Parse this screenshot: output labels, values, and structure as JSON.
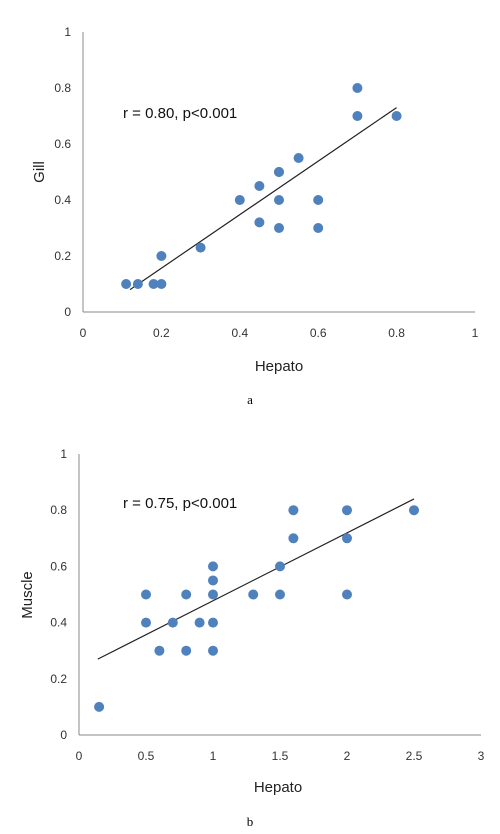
{
  "chart_data": [
    {
      "type": "scatter",
      "caption": "a",
      "xlabel": "Hepato",
      "ylabel": "Gill",
      "annotation": "r = 0.80, p<0.001",
      "xlim": [
        0,
        1
      ],
      "ylim": [
        0,
        1
      ],
      "xticks": [
        "0",
        "0.2",
        "0.4",
        "0.6",
        "0.8",
        "1"
      ],
      "xtick_values": [
        0,
        0.2,
        0.4,
        0.6,
        0.8,
        1
      ],
      "yticks": [
        "0",
        "0.2",
        "0.4",
        "0.6",
        "0.8",
        "1"
      ],
      "ytick_values": [
        0,
        0.2,
        0.4,
        0.6,
        0.8,
        1
      ],
      "grid": false,
      "marker_color": "#4f81bd",
      "line_color": "#222222",
      "points": [
        [
          0.11,
          0.1
        ],
        [
          0.14,
          0.1
        ],
        [
          0.18,
          0.1
        ],
        [
          0.2,
          0.1
        ],
        [
          0.2,
          0.2
        ],
        [
          0.3,
          0.23
        ],
        [
          0.4,
          0.4
        ],
        [
          0.45,
          0.45
        ],
        [
          0.45,
          0.32
        ],
        [
          0.5,
          0.5
        ],
        [
          0.5,
          0.5
        ],
        [
          0.5,
          0.4
        ],
        [
          0.5,
          0.3
        ],
        [
          0.55,
          0.55
        ],
        [
          0.6,
          0.4
        ],
        [
          0.6,
          0.3
        ],
        [
          0.7,
          0.8
        ],
        [
          0.7,
          0.7
        ],
        [
          0.8,
          0.7
        ]
      ],
      "trendline": [
        [
          0.12,
          0.08
        ],
        [
          0.8,
          0.73
        ]
      ]
    },
    {
      "type": "scatter",
      "caption": "b",
      "xlabel": "Hepato",
      "ylabel": "Muscle",
      "annotation": "r = 0.75, p<0.001",
      "xlim": [
        0,
        3
      ],
      "ylim": [
        0,
        1
      ],
      "xticks": [
        "0",
        "0.5",
        "1",
        "1.5",
        "2",
        "2.5",
        "3"
      ],
      "xtick_values": [
        0,
        0.5,
        1,
        1.5,
        2,
        2.5,
        3
      ],
      "yticks": [
        "0",
        "0.2",
        "0.4",
        "0.6",
        "0.8",
        "1"
      ],
      "ytick_values": [
        0,
        0.2,
        0.4,
        0.6,
        0.8,
        1
      ],
      "grid": false,
      "marker_color": "#4f81bd",
      "line_color": "#222222",
      "points": [
        [
          0.15,
          0.1
        ],
        [
          0.5,
          0.5
        ],
        [
          0.5,
          0.4
        ],
        [
          0.6,
          0.3
        ],
        [
          0.7,
          0.4
        ],
        [
          0.8,
          0.5
        ],
        [
          0.8,
          0.3
        ],
        [
          0.9,
          0.4
        ],
        [
          1.0,
          0.6
        ],
        [
          1.0,
          0.55
        ],
        [
          1.0,
          0.5
        ],
        [
          1.0,
          0.4
        ],
        [
          1.0,
          0.3
        ],
        [
          1.3,
          0.5
        ],
        [
          1.5,
          0.6
        ],
        [
          1.5,
          0.5
        ],
        [
          1.6,
          0.8
        ],
        [
          1.6,
          0.7
        ],
        [
          2.0,
          0.8
        ],
        [
          2.0,
          0.7
        ],
        [
          2.0,
          0.5
        ],
        [
          2.5,
          0.8
        ]
      ],
      "trendline": [
        [
          0.14,
          0.27
        ],
        [
          2.5,
          0.84
        ]
      ]
    }
  ]
}
